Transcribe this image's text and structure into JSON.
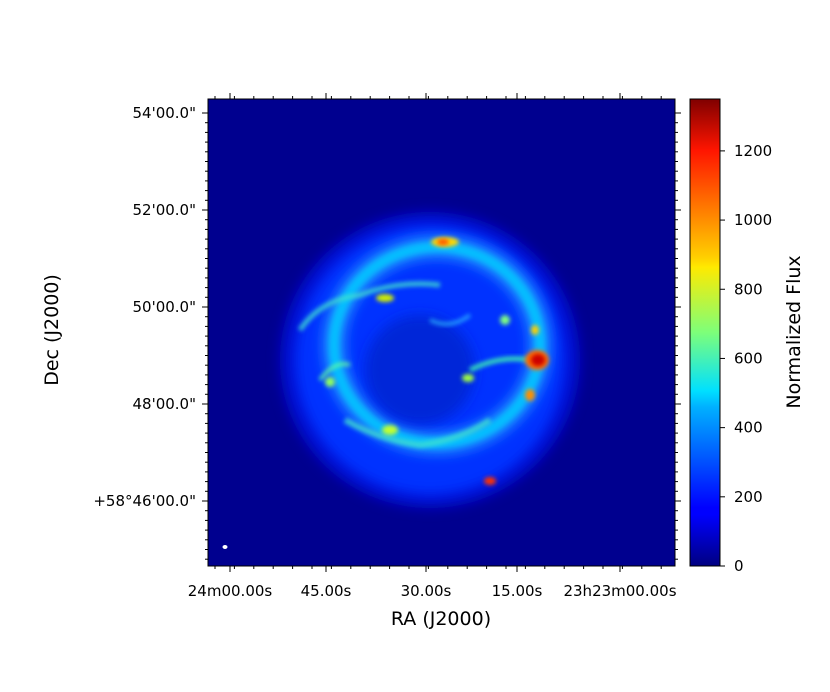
{
  "chart_data": {
    "type": "heatmap",
    "title": "",
    "xlabel": "RA (J2000)",
    "ylabel": "Dec (J2000)",
    "x_tick_labels": [
      "24m00.00s",
      "45.00s",
      "30.00s",
      "15.00s",
      "23h23m00.00s"
    ],
    "y_tick_labels": [
      "54'00.0\"",
      "52'00.0\"",
      "50'00.0\"",
      "48'00.0\"",
      "+58°46'00.0\""
    ],
    "colorbar": {
      "label": "Normalized Flux",
      "colormap": "jet",
      "range": [
        0,
        1350
      ],
      "ticks": [
        0,
        200,
        400,
        600,
        800,
        1000,
        1200
      ]
    },
    "background_color": "#00008f",
    "grid": false
  }
}
